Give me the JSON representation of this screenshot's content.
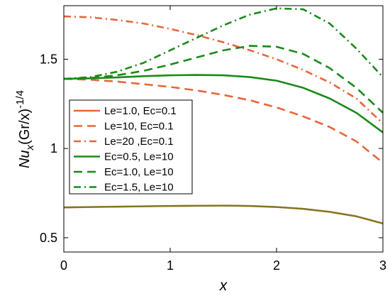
{
  "chart_data": {
    "type": "line",
    "xlabel": "x",
    "ylabel": {
      "base": "Nu",
      "sub": "x",
      "middle": "(Gr/x)",
      "sup": "-1/4"
    },
    "xlim": [
      0,
      3
    ],
    "ylim": [
      0.42,
      1.8
    ],
    "xticks": [
      0,
      1,
      2,
      3
    ],
    "yticks": [
      0.5,
      1,
      1.5
    ],
    "ytick_labels": [
      "0.5",
      "1",
      "1.5"
    ],
    "xtick_labels": [
      "0",
      "1",
      "2",
      "3"
    ],
    "grid": false,
    "legend_position": "left-middle",
    "colors": {
      "orange": "#e8663a",
      "green": "#1a8a1a",
      "olive": "#7a7a20"
    },
    "series": [
      {
        "name": "Le=1.0, Ec=0.1",
        "color": "#e8663a",
        "style": "solid",
        "x": [
          0,
          0.25,
          0.5,
          0.75,
          1.0,
          1.25,
          1.5,
          1.75,
          2.0,
          2.25,
          2.5,
          2.75,
          3.0
        ],
        "y": [
          0.67,
          0.672,
          0.674,
          0.676,
          0.678,
          0.679,
          0.68,
          0.678,
          0.672,
          0.662,
          0.645,
          0.62,
          0.58
        ]
      },
      {
        "name": "Le=10, Ec=0.1",
        "color": "#e8663a",
        "style": "dashed",
        "x": [
          0,
          0.25,
          0.5,
          0.75,
          1.0,
          1.25,
          1.5,
          1.75,
          2.0,
          2.25,
          2.5,
          2.75,
          3.0
        ],
        "y": [
          1.39,
          1.385,
          1.375,
          1.36,
          1.345,
          1.325,
          1.3,
          1.27,
          1.23,
          1.18,
          1.12,
          1.04,
          0.92
        ]
      },
      {
        "name": "Le=20 ,Ec=0.1",
        "color": "#e8663a",
        "style": "dashdot",
        "x": [
          0,
          0.25,
          0.5,
          0.75,
          1.0,
          1.25,
          1.5,
          1.75,
          2.0,
          2.25,
          2.5,
          2.75,
          3.0
        ],
        "y": [
          1.74,
          1.735,
          1.72,
          1.7,
          1.67,
          1.635,
          1.595,
          1.55,
          1.5,
          1.44,
          1.37,
          1.28,
          1.14
        ]
      },
      {
        "name": "Ec=0.5, Le=10",
        "color": "#1a8a1a",
        "style": "solid",
        "x": [
          0,
          0.25,
          0.5,
          0.75,
          1.0,
          1.25,
          1.5,
          1.75,
          2.0,
          2.25,
          2.5,
          2.75,
          3.0
        ],
        "y": [
          1.39,
          1.393,
          1.398,
          1.405,
          1.41,
          1.412,
          1.41,
          1.4,
          1.38,
          1.34,
          1.28,
          1.2,
          1.09
        ]
      },
      {
        "name": "Ec=1.0, Le=10",
        "color": "#1a8a1a",
        "style": "dashed",
        "x": [
          0,
          0.25,
          0.5,
          0.75,
          1.0,
          1.25,
          1.5,
          1.75,
          2.0,
          2.25,
          2.5,
          2.75,
          3.0
        ],
        "y": [
          1.39,
          1.395,
          1.41,
          1.435,
          1.47,
          1.51,
          1.55,
          1.575,
          1.57,
          1.53,
          1.45,
          1.34,
          1.2
        ]
      },
      {
        "name": "Ec=1.5, Le=10",
        "color": "#1a8a1a",
        "style": "dashdot",
        "x": [
          0,
          0.25,
          0.5,
          0.75,
          1.0,
          1.25,
          1.5,
          1.75,
          2.0,
          2.25,
          2.5,
          2.75,
          3.0
        ],
        "y": [
          1.39,
          1.4,
          1.43,
          1.48,
          1.55,
          1.62,
          1.69,
          1.75,
          1.785,
          1.78,
          1.7,
          1.56,
          1.4
        ]
      },
      {
        "color": "#7a7a20",
        "style": "solid",
        "x": [
          0,
          0.25,
          0.5,
          0.75,
          1.0,
          1.25,
          1.5,
          1.75,
          2.0,
          2.25,
          2.5,
          2.75,
          3.0
        ],
        "y": [
          0.67,
          0.672,
          0.674,
          0.676,
          0.678,
          0.679,
          0.68,
          0.678,
          0.672,
          0.662,
          0.645,
          0.62,
          0.58
        ]
      }
    ]
  }
}
